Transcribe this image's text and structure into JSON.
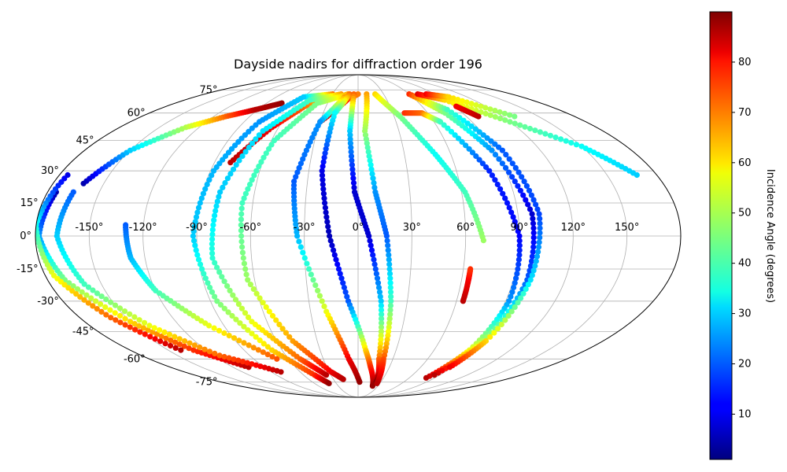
{
  "chart_data": {
    "type": "scatter",
    "projection": "mollweide",
    "title": "Dayside nadirs for diffraction order 196",
    "x_tick_labels": [
      "-150°",
      "-120°",
      "-90°",
      "-60°",
      "-30°",
      "0°",
      "30°",
      "60°",
      "90°",
      "120°",
      "150°"
    ],
    "y_tick_labels": [
      "75°",
      "60°",
      "45°",
      "30°",
      "15°",
      "0°",
      "-15°",
      "-30°",
      "-45°",
      "-60°",
      "-75°"
    ],
    "x_ticks": [
      -150,
      -120,
      -90,
      -60,
      -30,
      0,
      30,
      60,
      90,
      120,
      150
    ],
    "y_ticks": [
      75,
      60,
      45,
      30,
      15,
      0,
      -15,
      -30,
      -45,
      -60,
      -75
    ],
    "grid": true,
    "colorbar": {
      "label": "Incidence Angle (degrees)",
      "colormap": "jet",
      "range": [
        1,
        90
      ],
      "tick_labels": [
        "10",
        "20",
        "30",
        "40",
        "50",
        "60",
        "70",
        "80"
      ],
      "ticks": [
        10,
        20,
        30,
        40,
        50,
        60,
        70,
        80
      ]
    },
    "tracks": [
      {
        "points": [
          [
            -162,
            24,
            5
          ],
          [
            -150,
            40,
            30
          ],
          [
            -130,
            52,
            50
          ],
          [
            -110,
            58,
            70
          ],
          [
            -92,
            62,
            85
          ],
          [
            -75,
            66,
            88
          ]
        ]
      },
      {
        "points": [
          [
            -30,
            55,
            85
          ],
          [
            -10,
            69,
            75
          ],
          [
            0,
            72,
            68
          ]
        ]
      },
      {
        "points": [
          [
            -80,
            34,
            85
          ],
          [
            -65,
            52,
            80
          ],
          [
            -50,
            64,
            70
          ],
          [
            -38,
            71,
            60
          ]
        ]
      },
      {
        "points": [
          [
            -30,
            72,
            70
          ],
          [
            -60,
            70,
            30
          ],
          [
            -78,
            55,
            25
          ],
          [
            -88,
            30,
            28
          ],
          [
            -92,
            0,
            30
          ],
          [
            -86,
            -30,
            45
          ],
          [
            -68,
            -55,
            60
          ],
          [
            -48,
            -70,
            75
          ],
          [
            -40,
            -76,
            88
          ]
        ]
      },
      {
        "points": [
          [
            -20,
            72,
            66
          ],
          [
            -50,
            68,
            40
          ],
          [
            -70,
            50,
            32
          ],
          [
            -80,
            20,
            30
          ],
          [
            -82,
            -10,
            38
          ],
          [
            -70,
            -40,
            55
          ],
          [
            -50,
            -60,
            70
          ],
          [
            -35,
            -70,
            85
          ]
        ]
      },
      {
        "points": [
          [
            -12,
            72,
            65
          ],
          [
            -40,
            66,
            45
          ],
          [
            -58,
            45,
            40
          ],
          [
            -66,
            15,
            40
          ],
          [
            -64,
            -20,
            48
          ],
          [
            -48,
            -50,
            65
          ],
          [
            -28,
            -68,
            80
          ],
          [
            -18,
            -73,
            85
          ]
        ]
      },
      {
        "points": [
          [
            -15,
            70,
            65
          ],
          [
            -30,
            55,
            25
          ],
          [
            -38,
            25,
            20
          ],
          [
            -34,
            0,
            28
          ],
          [
            -20,
            -35,
            55
          ],
          [
            -8,
            -60,
            80
          ],
          [
            2,
            -75,
            88
          ]
        ]
      },
      {
        "points": [
          [
            -10,
            72,
            70
          ],
          [
            -20,
            60,
            35
          ],
          [
            -22,
            30,
            10
          ],
          [
            -16,
            0,
            6
          ],
          [
            -6,
            -30,
            20
          ],
          [
            6,
            -55,
            60
          ],
          [
            12,
            -65,
            75
          ],
          [
            22,
            -78,
            88
          ]
        ]
      },
      {
        "points": [
          [
            -5,
            72,
            70
          ],
          [
            -6,
            50,
            30
          ],
          [
            -2,
            20,
            8
          ],
          [
            6,
            0,
            8
          ],
          [
            14,
            -30,
            30
          ],
          [
            18,
            -60,
            70
          ],
          [
            24,
            -75,
            90
          ]
        ]
      },
      {
        "points": [
          [
            10,
            72,
            65
          ],
          [
            5,
            50,
            48
          ],
          [
            10,
            20,
            25
          ],
          [
            16,
            0,
            20
          ],
          [
            20,
            -30,
            40
          ],
          [
            22,
            -60,
            72
          ],
          [
            26,
            -76,
            85
          ]
        ]
      },
      {
        "points": [
          [
            20,
            72,
            60
          ],
          [
            35,
            58,
            45
          ],
          [
            50,
            38,
            35
          ],
          [
            62,
            20,
            40
          ],
          [
            70,
            -2,
            48
          ]
        ]
      },
      {
        "points": [
          [
            40,
            60,
            75
          ],
          [
            55,
            60,
            70
          ],
          [
            65,
            55,
            40
          ],
          [
            80,
            30,
            15
          ],
          [
            90,
            0,
            12
          ],
          [
            92,
            -30,
            25
          ],
          [
            88,
            -55,
            55
          ],
          [
            80,
            -72,
            85
          ]
        ]
      },
      {
        "points": [
          [
            60,
            72,
            68
          ],
          [
            75,
            60,
            45
          ],
          [
            88,
            40,
            25
          ],
          [
            98,
            10,
            8
          ],
          [
            98,
            -20,
            20
          ],
          [
            92,
            -50,
            50
          ],
          [
            84,
            -70,
            85
          ]
        ]
      },
      {
        "points": [
          [
            60,
            72,
            75
          ],
          [
            80,
            62,
            40
          ],
          [
            95,
            40,
            20
          ],
          [
            102,
            10,
            18
          ],
          [
            100,
            -20,
            32
          ],
          [
            94,
            -50,
            60
          ],
          [
            88,
            -65,
            80
          ]
        ]
      },
      {
        "points": [
          [
            70,
            72,
            82
          ],
          [
            90,
            68,
            60
          ],
          [
            120,
            55,
            45
          ],
          [
            150,
            42,
            35
          ],
          [
            168,
            28,
            30
          ]
        ]
      },
      {
        "points": [
          [
            80,
            72,
            80
          ],
          [
            100,
            70,
            60
          ],
          [
            130,
            58,
            45
          ]
        ]
      },
      {
        "points": [
          [
            100,
            58,
            85
          ],
          [
            92,
            64,
            80
          ]
        ]
      },
      {
        "points": [
          [
            64,
            -30,
            85
          ],
          [
            64,
            -20,
            80
          ],
          [
            64,
            -15,
            75
          ]
        ]
      },
      {
        "points": [
          [
            -175,
            20,
            5
          ],
          [
            -178,
            0,
            25
          ],
          [
            -170,
            -20,
            45
          ],
          [
            -150,
            -40,
            60
          ],
          [
            -130,
            -55,
            75
          ],
          [
            -105,
            -65,
            85
          ]
        ]
      },
      {
        "points": [
          [
            -175,
            28,
            10
          ],
          [
            -180,
            5,
            35
          ],
          [
            -175,
            -18,
            55
          ],
          [
            -160,
            -38,
            70
          ],
          [
            -140,
            -55,
            85
          ]
        ]
      },
      {
        "points": [
          [
            -165,
            20,
            20
          ],
          [
            -168,
            0,
            30
          ],
          [
            -160,
            -22,
            40
          ],
          [
            -140,
            -42,
            55
          ],
          [
            -115,
            -58,
            70
          ],
          [
            -80,
            -68,
            85
          ]
        ]
      },
      {
        "points": [
          [
            -130,
            5,
            20
          ],
          [
            -128,
            -10,
            28
          ],
          [
            -120,
            -25,
            40
          ],
          [
            -100,
            -42,
            55
          ],
          [
            -70,
            -60,
            72
          ]
        ]
      }
    ]
  }
}
